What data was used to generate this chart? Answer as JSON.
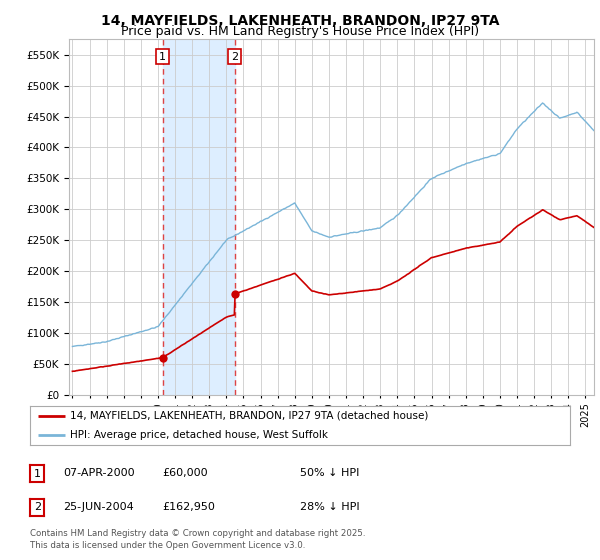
{
  "title": "14, MAYFIELDS, LAKENHEATH, BRANDON, IP27 9TA",
  "subtitle": "Price paid vs. HM Land Registry's House Price Index (HPI)",
  "ylim": [
    0,
    575000
  ],
  "yticks": [
    0,
    50000,
    100000,
    150000,
    200000,
    250000,
    300000,
    350000,
    400000,
    450000,
    500000,
    550000
  ],
  "xlim_start": 1994.8,
  "xlim_end": 2025.5,
  "hpi_color": "#7ab5d8",
  "price_color": "#cc0000",
  "sale1_date": 2000.27,
  "sale1_price": 60000,
  "sale1_label": "1",
  "sale2_date": 2004.48,
  "sale2_price": 162950,
  "sale2_label": "2",
  "vline_color": "#dd4444",
  "vline_style": "--",
  "span_color": "#ddeeff",
  "background_color": "#ffffff",
  "grid_color": "#cccccc",
  "legend_line1": "14, MAYFIELDS, LAKENHEATH, BRANDON, IP27 9TA (detached house)",
  "legend_line2": "HPI: Average price, detached house, West Suffolk",
  "table_row1": [
    "1",
    "07-APR-2000",
    "£60,000",
    "50% ↓ HPI"
  ],
  "table_row2": [
    "2",
    "25-JUN-2004",
    "£162,950",
    "28% ↓ HPI"
  ],
  "footnote": "Contains HM Land Registry data © Crown copyright and database right 2025.\nThis data is licensed under the Open Government Licence v3.0.",
  "title_fontsize": 10,
  "subtitle_fontsize": 9
}
